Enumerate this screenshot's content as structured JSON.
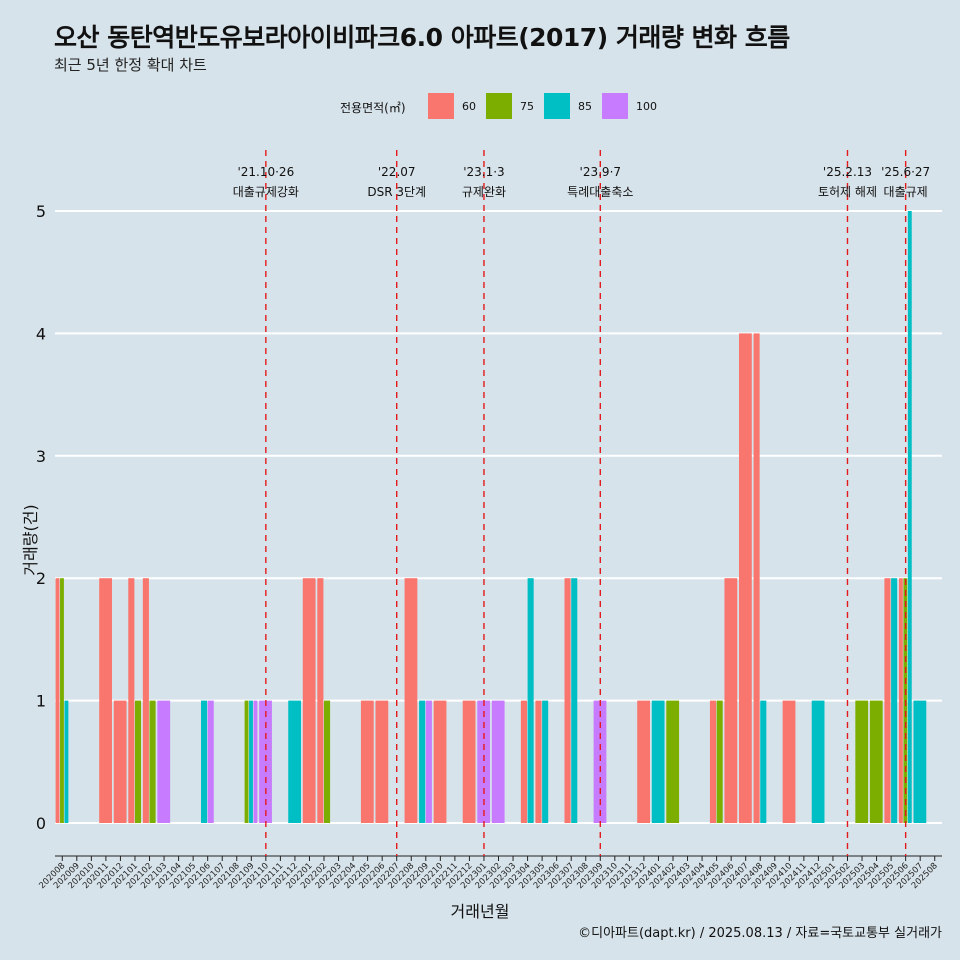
{
  "title": "오산 동탄역반도유보라아이비파크6.0 아파트(2017) 거래량 변화 흐름",
  "subtitle": "최근 5년 한정 확대 차트",
  "caption": "©디아파트(dapt.kr) / 2025.08.13 / 자료=국토교통부 실거래가",
  "chart_data": {
    "type": "bar",
    "xlabel": "거래년월",
    "ylabel": "거래량(건)",
    "ylim": [
      0,
      5
    ],
    "y_ticks": [
      "0",
      "1",
      "2",
      "3",
      "4",
      "5"
    ],
    "grid": true,
    "legend": {
      "title": "전용면적(㎡)",
      "placement": "top"
    },
    "categories": [
      "202008",
      "202009",
      "202010",
      "202011",
      "202012",
      "202101",
      "202102",
      "202103",
      "202104",
      "202105",
      "202106",
      "202107",
      "202108",
      "202109",
      "202110",
      "202111",
      "202112",
      "202201",
      "202202",
      "202203",
      "202204",
      "202205",
      "202206",
      "202207",
      "202208",
      "202209",
      "202210",
      "202211",
      "202212",
      "202301",
      "202302",
      "202303",
      "202304",
      "202305",
      "202306",
      "202307",
      "202308",
      "202309",
      "202310",
      "202311",
      "202312",
      "202401",
      "202402",
      "202403",
      "202404",
      "202405",
      "202406",
      "202407",
      "202408",
      "202409",
      "202410",
      "202411",
      "202412",
      "202501",
      "202502",
      "202503",
      "202504",
      "202505",
      "202506",
      "202507",
      "202508"
    ],
    "series": [
      {
        "name": "60",
        "color": "#F8766D",
        "values": [
          2,
          0,
          0,
          2,
          1,
          2,
          2,
          0,
          0,
          0,
          0,
          0,
          0,
          0,
          0,
          0,
          0,
          2,
          2,
          0,
          0,
          1,
          1,
          0,
          2,
          0,
          1,
          0,
          1,
          0,
          0,
          0,
          1,
          1,
          0,
          2,
          0,
          0,
          0,
          0,
          1,
          0,
          0,
          0,
          0,
          1,
          2,
          4,
          4,
          0,
          1,
          0,
          0,
          0,
          0,
          0,
          0,
          2,
          2,
          0,
          0
        ]
      },
      {
        "name": "75",
        "color": "#7CAE00",
        "values": [
          2,
          0,
          0,
          0,
          0,
          1,
          1,
          0,
          0,
          0,
          0,
          0,
          0,
          1,
          0,
          0,
          0,
          0,
          1,
          0,
          0,
          0,
          0,
          0,
          0,
          0,
          0,
          0,
          0,
          0,
          0,
          0,
          0,
          0,
          0,
          0,
          0,
          0,
          0,
          0,
          0,
          0,
          1,
          0,
          0,
          1,
          0,
          0,
          0,
          0,
          0,
          0,
          0,
          0,
          0,
          1,
          1,
          0,
          2,
          0,
          0
        ]
      },
      {
        "name": "85",
        "color": "#00BFC4",
        "values": [
          1,
          0,
          0,
          0,
          0,
          0,
          0,
          0,
          0,
          0,
          1,
          0,
          0,
          1,
          0,
          0,
          1,
          0,
          0,
          0,
          0,
          0,
          0,
          0,
          0,
          1,
          0,
          0,
          0,
          0,
          0,
          0,
          2,
          1,
          0,
          2,
          0,
          0,
          0,
          0,
          0,
          1,
          0,
          0,
          0,
          0,
          0,
          0,
          1,
          0,
          0,
          0,
          1,
          0,
          0,
          0,
          0,
          2,
          5,
          1,
          0
        ]
      },
      {
        "name": "100",
        "color": "#C77CFF",
        "values": [
          0,
          0,
          0,
          0,
          0,
          0,
          0,
          1,
          0,
          0,
          1,
          0,
          0,
          1,
          1,
          0,
          0,
          0,
          0,
          0,
          0,
          0,
          0,
          0,
          0,
          1,
          0,
          0,
          0,
          1,
          1,
          0,
          0,
          0,
          0,
          0,
          0,
          1,
          0,
          0,
          0,
          0,
          0,
          0,
          0,
          0,
          0,
          0,
          0,
          0,
          0,
          0,
          0,
          0,
          0,
          0,
          0,
          0,
          0,
          0,
          0
        ]
      }
    ],
    "events": [
      {
        "index": 14.5,
        "date": "'21.10·26",
        "label": "대출규제강화"
      },
      {
        "index": 23.5,
        "date": "'22.07",
        "label": "DSR 3단계"
      },
      {
        "index": 29.5,
        "date": "'23.1·3",
        "label": "규제완화"
      },
      {
        "index": 37.5,
        "date": "'23.9·7",
        "label": "특례대출축소"
      },
      {
        "index": 54.5,
        "date": "'25.2.13",
        "label": "토허제 해제"
      },
      {
        "index": 58.5,
        "date": "'25.6·27",
        "label": "대출규제"
      }
    ]
  }
}
